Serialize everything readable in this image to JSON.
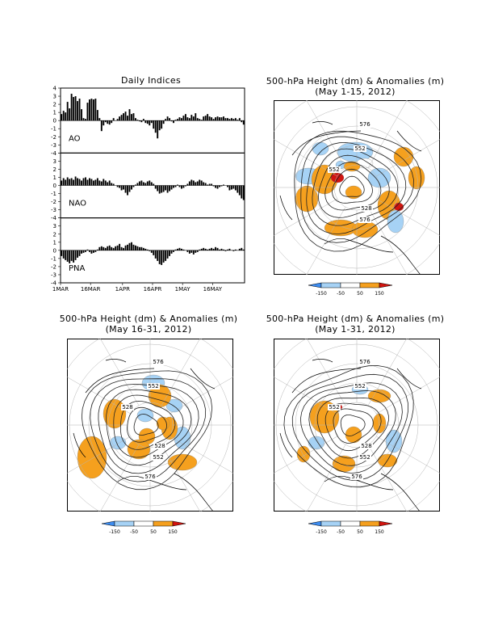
{
  "indices": {
    "title": "Daily Indices",
    "panels": [
      "AO",
      "NAO",
      "PNA"
    ],
    "y_ticks": [
      4,
      3,
      2,
      1,
      0,
      -1,
      -2,
      -3,
      -4
    ],
    "x_labels": [
      "1MAR",
      "16MAR",
      "1APR",
      "16APR",
      "1MAY",
      "16MAY"
    ]
  },
  "maps": [
    {
      "title_line1": "500-hPa Height (dm) & Anomalies (m)",
      "title_line2": "(May 1-15, 2012)",
      "contour_labels": [
        "576",
        "552",
        "552",
        "528",
        "576"
      ]
    },
    {
      "title_line1": "500-hPa Height (dm) & Anomalies (m)",
      "title_line2": "(May 16-31, 2012)",
      "contour_labels": [
        "576",
        "552",
        "528",
        "528",
        "552",
        "576"
      ]
    },
    {
      "title_line1": "500-hPa Height (dm) & Anomalies (m)",
      "title_line2": "(May 1-31, 2012)",
      "contour_labels": [
        "576",
        "552",
        "552",
        "528",
        "552",
        "576"
      ]
    }
  ],
  "colorbar": {
    "labels": [
      "-150",
      "-50",
      "50",
      "150"
    ],
    "colors": [
      "#3c8cf0",
      "#a6d2f5",
      "#ffffff",
      "#f5a01e",
      "#d2140f"
    ]
  },
  "chart_data": [
    {
      "type": "bar",
      "name": "AO",
      "title": "Daily Indices",
      "x_labels": [
        "1MAR",
        "16MAR",
        "1APR",
        "16APR",
        "1MAY",
        "16MAY"
      ],
      "ylim": [
        -4,
        4
      ],
      "values": [
        0.8,
        1.2,
        1.0,
        2.3,
        1.5,
        3.3,
        2.9,
        3.0,
        2.4,
        2.7,
        1.4,
        0.3,
        0.2,
        2.2,
        2.6,
        2.7,
        2.6,
        2.7,
        1.3,
        0.3,
        -1.3,
        -0.6,
        -0.2,
        -0.4,
        -0.5,
        -0.3,
        0.3,
        0,
        0.2,
        0.5,
        0.7,
        0.9,
        1.1,
        0.6,
        1.4,
        0.8,
        0.9,
        0.3,
        0.1,
        -0.1,
        -0.2,
        0.2,
        -0.3,
        -0.4,
        -0.6,
        -0.3,
        -1.0,
        -1.5,
        -2.2,
        -1.2,
        -1.0,
        -0.4,
        0.2,
        0.5,
        0.3,
        -0.1,
        -0.3,
        0.1,
        0.2,
        0.4,
        0.3,
        0.6,
        0.8,
        0.4,
        0.3,
        0.7,
        0.5,
        0.9,
        0.3,
        0.2,
        0.1,
        0.5,
        0.6,
        0.8,
        0.5,
        0.4,
        0.2,
        0.4,
        0.5,
        0.4,
        0.4,
        0.5,
        0.3,
        0.3,
        0.2,
        0.3,
        0.2,
        0.3,
        0.1,
        0.3,
        -0.2,
        -0.5
      ]
    },
    {
      "type": "bar",
      "name": "NAO",
      "x_labels": [
        "1MAR",
        "16MAR",
        "1APR",
        "16APR",
        "1MAY",
        "16MAY"
      ],
      "ylim": [
        -4,
        4
      ],
      "values": [
        0.6,
        0.9,
        0.7,
        1.0,
        0.8,
        0.9,
        0.7,
        1.1,
        0.9,
        0.8,
        0.6,
        0.9,
        1.0,
        0.7,
        0.9,
        0.8,
        0.6,
        0.7,
        0.9,
        0.6,
        0.5,
        0.8,
        0.6,
        0.4,
        0.6,
        0.3,
        0.2,
        0.0,
        -0.2,
        -0.3,
        -0.6,
        -0.5,
        -0.9,
        -1.2,
        -0.8,
        -0.5,
        -0.2,
        0.1,
        0.3,
        0.5,
        0.6,
        0.4,
        0.3,
        0.5,
        0.6,
        0.4,
        0.2,
        -0.4,
        -0.7,
        -1.0,
        -0.9,
        -0.8,
        -0.6,
        -0.9,
        -0.7,
        -0.5,
        -0.3,
        -0.2,
        0.1,
        -0.2,
        -0.4,
        -0.3,
        -0.1,
        0.2,
        0.5,
        0.7,
        0.6,
        0.4,
        0.5,
        0.7,
        0.6,
        0.4,
        0.3,
        0.1,
        0.2,
        0.2,
        -0.1,
        -0.3,
        -0.4,
        -0.2,
        -0.1,
        0.1,
        0.0,
        -0.2,
        -0.6,
        -0.5,
        -0.4,
        -0.6,
        -0.9,
        -1.2,
        -1.6,
        -1.8
      ]
    },
    {
      "type": "bar",
      "name": "PNA",
      "x_labels": [
        "1MAR",
        "16MAR",
        "1APR",
        "16APR",
        "1MAY",
        "16MAY"
      ],
      "ylim": [
        -4,
        4
      ],
      "values": [
        -0.7,
        -1.0,
        -1.2,
        -1.4,
        -1.6,
        -1.3,
        -1.5,
        -1.2,
        -0.9,
        -0.7,
        -0.4,
        -0.3,
        -0.2,
        0.1,
        -0.2,
        -0.4,
        -0.3,
        -0.2,
        0.1,
        0.4,
        0.5,
        0.4,
        0.3,
        0.5,
        0.6,
        0.4,
        0.3,
        0.5,
        0.6,
        0.8,
        0.4,
        0.3,
        0.6,
        0.7,
        0.9,
        1.0,
        0.7,
        0.6,
        0.5,
        0.4,
        0.4,
        0.3,
        0.2,
        0.1,
        -0.1,
        -0.3,
        -0.6,
        -1.0,
        -1.3,
        -1.7,
        -1.8,
        -1.5,
        -1.3,
        -1.0,
        -0.7,
        -0.4,
        -0.2,
        0.1,
        0.2,
        0.3,
        0.2,
        0.1,
        0.0,
        -0.2,
        -0.4,
        -0.3,
        -0.5,
        -0.3,
        -0.2,
        0.1,
        0.2,
        0.3,
        0.2,
        0.1,
        0.2,
        0.3,
        0.2,
        0.4,
        0.3,
        0.1,
        0.2,
        0.1,
        -0.1,
        0.1,
        0.2,
        0.0,
        -0.1,
        0.1,
        0.0,
        0.2,
        0.3,
        0.1
      ]
    }
  ]
}
